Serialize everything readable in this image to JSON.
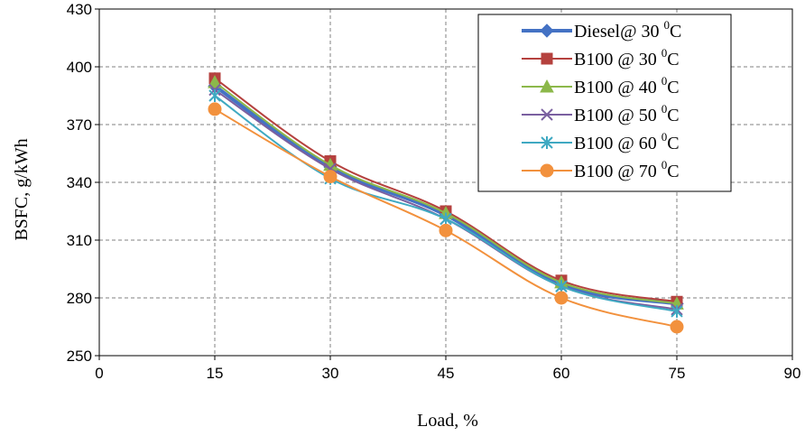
{
  "chart_data": {
    "type": "line",
    "xlabel": "Load, %",
    "ylabel": "BSFC, g/kWh",
    "xlim": [
      0,
      90
    ],
    "ylim": [
      250,
      430
    ],
    "xticks": [
      0,
      15,
      30,
      45,
      60,
      75,
      90
    ],
    "yticks": [
      250,
      280,
      310,
      340,
      370,
      400,
      430
    ],
    "grid": true,
    "legend_position": "top-right",
    "x": [
      15,
      30,
      45,
      60,
      75
    ],
    "series": [
      {
        "name": "Diesel@ 30",
        "unit_sup": "0",
        "unit": "C",
        "color": "#4472C4",
        "marker": "diamond",
        "width": 4,
        "values": [
          390,
          348,
          323,
          287,
          277
        ]
      },
      {
        "name": "B100 @ 30",
        "unit_sup": "0",
        "unit": "C",
        "color": "#B5413E",
        "marker": "square",
        "width": 2,
        "values": [
          394,
          351,
          325,
          289,
          278
        ]
      },
      {
        "name": "B100 @ 40",
        "unit_sup": "0",
        "unit": "C",
        "color": "#8CB84A",
        "marker": "triangle",
        "width": 2,
        "values": [
          392,
          349,
          324,
          288,
          277
        ]
      },
      {
        "name": "B100 @ 50",
        "unit_sup": "0",
        "unit": "C",
        "color": "#7A5FA0",
        "marker": "x",
        "width": 2,
        "values": [
          388,
          347,
          321,
          286,
          274
        ]
      },
      {
        "name": "B100 @ 60",
        "unit_sup": "0",
        "unit": "C",
        "color": "#3FA9C2",
        "marker": "star",
        "width": 2,
        "values": [
          385,
          342,
          321,
          286,
          273
        ]
      },
      {
        "name": "B100 @ 70",
        "unit_sup": "0",
        "unit": "C",
        "color": "#F2913D",
        "marker": "circle",
        "width": 2,
        "values": [
          378,
          343,
          315,
          280,
          265
        ]
      }
    ]
  }
}
